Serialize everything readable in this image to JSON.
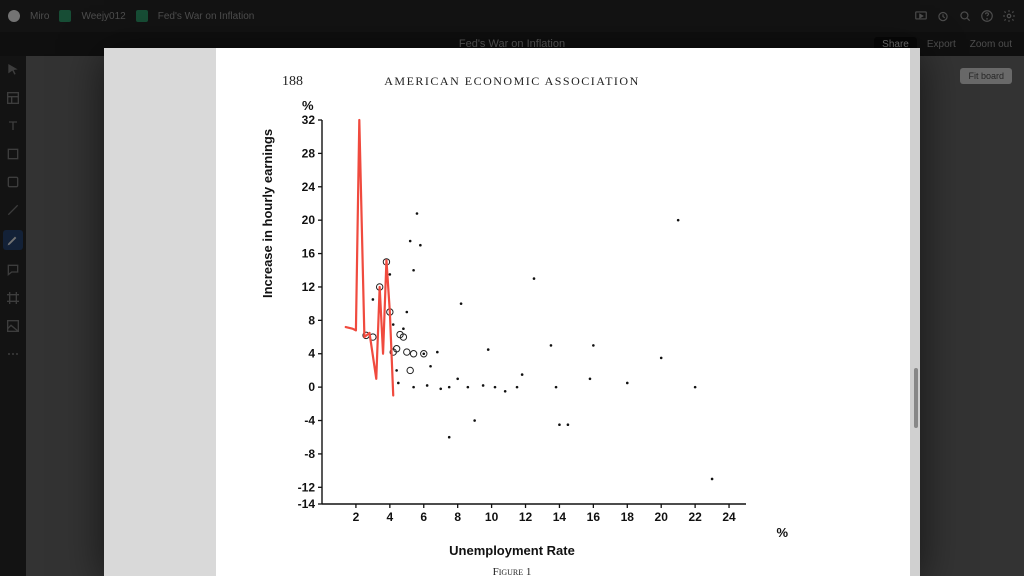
{
  "topbar": {
    "brand": "Miro",
    "workspace": "Weejy012",
    "doc_hint": "Fed's War on Inflation",
    "share": "Share",
    "export": "Export",
    "zoom": "Zoom out"
  },
  "title_bar": {
    "title": "Fed's War on Inflation"
  },
  "canvas": {
    "pill": "Fit board",
    "thumb2": "NYT-PC.pdf"
  },
  "paper": {
    "page_number": "188",
    "header": "AMERICAN  ECONOMIC  ASSOCIATION",
    "caption": "Figure 1",
    "pct": "%",
    "ylabel": "Increase in hourly earnings",
    "xlabel": "Unemployment Rate"
  },
  "chart": {
    "type": "scatter+line",
    "background_color": "#ffffff",
    "axis_color": "#111111",
    "tick_fontsize": 12,
    "tick_fontweight": "bold",
    "x": {
      "min": 0,
      "max": 25,
      "ticks": [
        2,
        4,
        6,
        8,
        10,
        12,
        14,
        16,
        18,
        20,
        22,
        24
      ]
    },
    "y": {
      "min": -14,
      "max": 32,
      "ticks": [
        -14,
        -12,
        -8,
        -4,
        0,
        4,
        8,
        12,
        16,
        20,
        24,
        28,
        32
      ]
    },
    "line": {
      "color": "#f04a3e",
      "width": 2.2,
      "points": [
        [
          1.4,
          7.2
        ],
        [
          1.8,
          7.0
        ],
        [
          2.0,
          6.8
        ],
        [
          2.2,
          32.0
        ],
        [
          2.5,
          6.0
        ],
        [
          2.8,
          6.5
        ],
        [
          3.2,
          1.0
        ],
        [
          3.4,
          12.0
        ],
        [
          3.6,
          4.0
        ],
        [
          3.8,
          15.2
        ],
        [
          4.0,
          9.0
        ],
        [
          4.2,
          -1.0
        ]
      ]
    },
    "open_circles": {
      "color": "#222222",
      "radius": 3.2,
      "stroke_width": 1,
      "points": [
        [
          2.6,
          6.2
        ],
        [
          3.0,
          6.0
        ],
        [
          3.4,
          12.0
        ],
        [
          3.8,
          15.0
        ],
        [
          4.0,
          9.0
        ],
        [
          4.2,
          4.2
        ],
        [
          4.4,
          4.6
        ],
        [
          4.6,
          6.3
        ],
        [
          4.8,
          6.0
        ],
        [
          5.0,
          4.2
        ],
        [
          5.2,
          2.0
        ],
        [
          5.4,
          4.0
        ],
        [
          6.0,
          4.0
        ]
      ]
    },
    "dots": {
      "color": "#111111",
      "radius": 1.3,
      "points": [
        [
          3.0,
          10.5
        ],
        [
          3.6,
          6.0
        ],
        [
          4.0,
          13.5
        ],
        [
          4.2,
          7.5
        ],
        [
          4.4,
          2.0
        ],
        [
          4.5,
          0.5
        ],
        [
          4.8,
          7.0
        ],
        [
          5.0,
          9.0
        ],
        [
          5.2,
          17.5
        ],
        [
          5.4,
          14.0
        ],
        [
          5.4,
          0.0
        ],
        [
          5.6,
          20.8
        ],
        [
          5.8,
          17.0
        ],
        [
          6.0,
          4.0
        ],
        [
          6.2,
          0.2
        ],
        [
          6.4,
          2.5
        ],
        [
          6.8,
          4.2
        ],
        [
          7.0,
          -0.2
        ],
        [
          7.5,
          0.0
        ],
        [
          7.5,
          -6.0
        ],
        [
          8.0,
          1.0
        ],
        [
          8.2,
          10.0
        ],
        [
          8.6,
          0.0
        ],
        [
          9.0,
          -4.0
        ],
        [
          9.5,
          0.2
        ],
        [
          9.8,
          4.5
        ],
        [
          10.2,
          0.0
        ],
        [
          10.8,
          -0.5
        ],
        [
          11.5,
          0.0
        ],
        [
          11.8,
          1.5
        ],
        [
          12.5,
          13.0
        ],
        [
          13.5,
          5.0
        ],
        [
          13.8,
          0.0
        ],
        [
          14.0,
          -4.5
        ],
        [
          14.5,
          -4.5
        ],
        [
          15.8,
          1.0
        ],
        [
          16.0,
          5.0
        ],
        [
          18.0,
          0.5
        ],
        [
          20.0,
          3.5
        ],
        [
          21.0,
          20.0
        ],
        [
          22.0,
          0.0
        ],
        [
          23.0,
          -11.0
        ]
      ]
    }
  }
}
